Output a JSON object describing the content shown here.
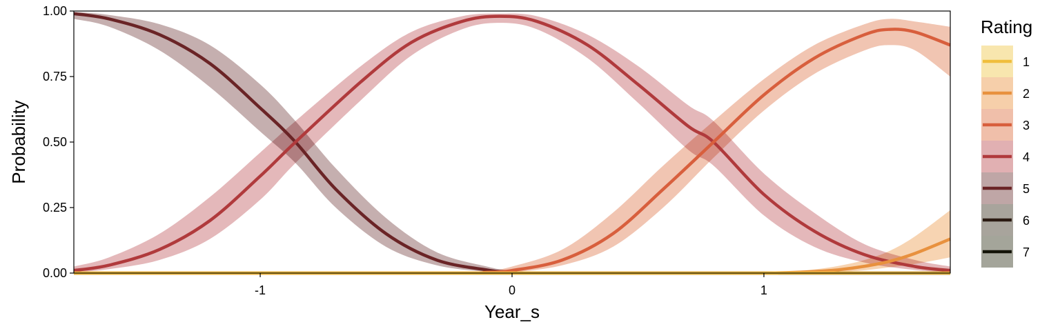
{
  "chart_data": {
    "type": "line",
    "title": "",
    "xlabel": "Year_s",
    "ylabel": "Probability",
    "xlim": [
      -1.74,
      1.74
    ],
    "ylim": [
      0,
      1
    ],
    "x_ticks": [
      {
        "value": -1,
        "label": "-1"
      },
      {
        "value": 0,
        "label": "0"
      },
      {
        "value": 1,
        "label": "1"
      }
    ],
    "y_ticks": [
      {
        "value": 0,
        "label": "0.00"
      },
      {
        "value": 0.25,
        "label": "0.25"
      },
      {
        "value": 0.5,
        "label": "0.50"
      },
      {
        "value": 0.75,
        "label": "0.75"
      },
      {
        "value": 1,
        "label": "1.00"
      }
    ],
    "grid": false,
    "legend": {
      "title": "Rating",
      "position": "right"
    },
    "series": [
      {
        "name": "1",
        "color": "#F0BE3C",
        "band_color": "#F8E6AE",
        "x": [
          -1.74,
          1.0,
          1.74
        ],
        "y": [
          0.0,
          0.0,
          0.0
        ],
        "lower": [
          0.0,
          0.0,
          0.0
        ],
        "upper": [
          0.0,
          0.0,
          0.0
        ]
      },
      {
        "name": "2",
        "color": "#E8913E",
        "band_color": "#F6CFAA",
        "x": [
          -1.74,
          0.8,
          1.0,
          1.1,
          1.2,
          1.3,
          1.4,
          1.5,
          1.6,
          1.74
        ],
        "y": [
          0.0,
          0.0,
          0.0,
          0.002,
          0.006,
          0.013,
          0.026,
          0.045,
          0.075,
          0.13
        ],
        "lower": [
          0.0,
          0.0,
          0.0,
          0.0,
          0.002,
          0.005,
          0.011,
          0.022,
          0.035,
          0.06
        ],
        "upper": [
          0.0,
          0.0,
          0.002,
          0.006,
          0.014,
          0.028,
          0.05,
          0.085,
          0.14,
          0.24
        ]
      },
      {
        "name": "3",
        "color": "#D85F3D",
        "band_color": "#F0BFAA",
        "x": [
          -1.74,
          -0.3,
          -0.1,
          0.0,
          0.2,
          0.4,
          0.6,
          0.8,
          1.0,
          1.2,
          1.4,
          1.5,
          1.6,
          1.74
        ],
        "y": [
          0.0,
          0.0,
          0.003,
          0.01,
          0.05,
          0.15,
          0.32,
          0.5,
          0.68,
          0.82,
          0.91,
          0.93,
          0.92,
          0.87
        ],
        "lower": [
          0.0,
          0.0,
          0.0,
          0.003,
          0.03,
          0.1,
          0.25,
          0.44,
          0.62,
          0.76,
          0.85,
          0.87,
          0.85,
          0.75
        ],
        "upper": [
          0.0,
          0.0,
          0.01,
          0.025,
          0.09,
          0.23,
          0.41,
          0.58,
          0.74,
          0.87,
          0.95,
          0.97,
          0.96,
          0.94
        ]
      },
      {
        "name": "4",
        "color": "#B03A3C",
        "band_color": "#E1B0B2",
        "x": [
          -1.74,
          -1.6,
          -1.4,
          -1.2,
          -1.0,
          -0.86,
          -0.6,
          -0.4,
          -0.2,
          -0.05,
          0.1,
          0.3,
          0.5,
          0.7,
          0.8,
          1.0,
          1.2,
          1.4,
          1.6,
          1.74
        ],
        "y": [
          0.01,
          0.03,
          0.09,
          0.2,
          0.37,
          0.5,
          0.73,
          0.88,
          0.96,
          0.98,
          0.96,
          0.87,
          0.72,
          0.56,
          0.5,
          0.3,
          0.16,
          0.07,
          0.025,
          0.01
        ],
        "lower": [
          0.003,
          0.015,
          0.05,
          0.13,
          0.28,
          0.42,
          0.66,
          0.83,
          0.93,
          0.955,
          0.93,
          0.82,
          0.65,
          0.47,
          0.41,
          0.22,
          0.1,
          0.04,
          0.012,
          0.004
        ],
        "upper": [
          0.025,
          0.06,
          0.15,
          0.29,
          0.46,
          0.58,
          0.79,
          0.92,
          0.98,
          0.99,
          0.98,
          0.91,
          0.79,
          0.64,
          0.58,
          0.38,
          0.23,
          0.11,
          0.05,
          0.025
        ]
      },
      {
        "name": "5",
        "color": "#6A2426",
        "band_color": "#BFA6A6",
        "x": [
          -1.74,
          -1.6,
          -1.4,
          -1.2,
          -1.0,
          -0.86,
          -0.7,
          -0.5,
          -0.3,
          -0.1,
          0.0,
          0.2,
          1.74
        ],
        "y": [
          0.99,
          0.97,
          0.91,
          0.8,
          0.63,
          0.5,
          0.32,
          0.15,
          0.05,
          0.012,
          0.003,
          0.0,
          0.0
        ],
        "lower": [
          0.97,
          0.94,
          0.85,
          0.71,
          0.54,
          0.42,
          0.25,
          0.1,
          0.03,
          0.005,
          0.0,
          0.0,
          0.0
        ],
        "upper": [
          0.997,
          0.985,
          0.95,
          0.87,
          0.72,
          0.58,
          0.4,
          0.21,
          0.08,
          0.025,
          0.01,
          0.0,
          0.0
        ]
      },
      {
        "name": "6",
        "color": "#2B1A12",
        "band_color": "#A8A49C",
        "x": [
          -1.74,
          1.74
        ],
        "y": [
          0.0,
          0.0
        ],
        "lower": [
          0.0,
          0.0
        ],
        "upper": [
          0.0,
          0.0
        ]
      },
      {
        "name": "7",
        "color": "#141408",
        "band_color": "#A4A59A",
        "x": [
          -1.74,
          1.74
        ],
        "y": [
          0.0,
          0.0
        ],
        "lower": [
          0.0,
          0.0
        ],
        "upper": [
          0.0,
          0.0
        ]
      }
    ]
  }
}
